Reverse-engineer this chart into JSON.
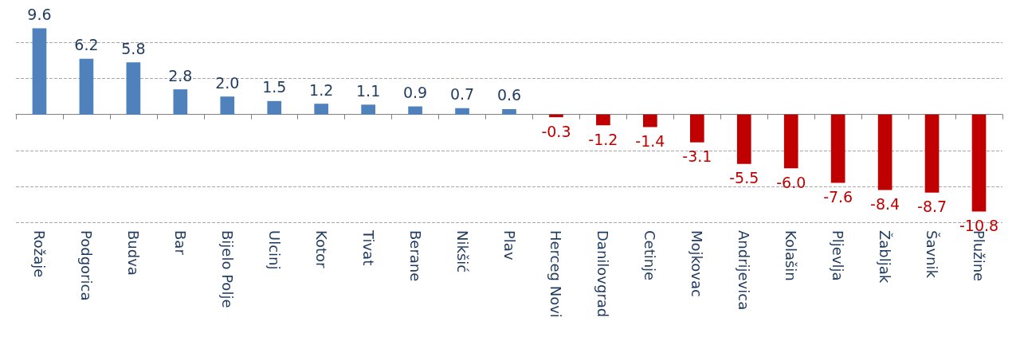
{
  "chart_data": {
    "type": "bar",
    "categories": [
      "Rožaje",
      "Podgorica",
      "Budva",
      "Bar",
      "Bijelo Polje",
      "Ulcinj",
      "Kotor",
      "Tivat",
      "Berane",
      "Nikšić",
      "Plav",
      "Herceg Novi",
      "Danilovgrad",
      "Cetinje",
      "Mojkovac",
      "Andrijevica",
      "Kolašin",
      "Pljevlja",
      "Žabljak",
      "Šavnik",
      "Plužine"
    ],
    "values": [
      9.6,
      6.2,
      5.8,
      2.8,
      2.0,
      1.5,
      1.2,
      1.1,
      0.9,
      0.7,
      0.6,
      -0.3,
      -1.2,
      -1.4,
      -3.1,
      -5.5,
      -6.0,
      -7.6,
      -8.4,
      -8.7,
      -10.8
    ],
    "colors": [
      "#4f81bd",
      "#4f81bd",
      "#4f81bd",
      "#4f81bd",
      "#4f81bd",
      "#4f81bd",
      "#4f81bd",
      "#4f81bd",
      "#4f81bd",
      "#4f81bd",
      "#4f81bd",
      "#c00000",
      "#c00000",
      "#c00000",
      "#c00000",
      "#c00000",
      "#c00000",
      "#c00000",
      "#c00000",
      "#c00000",
      "#c00000"
    ],
    "value_labels": [
      "9.6",
      "6.2",
      "5.8",
      "2.8",
      "2.0",
      "1.5",
      "1.2",
      "1.1",
      "0.9",
      "0.7",
      "0.6",
      "-0.3",
      "-1.2",
      "-1.4",
      "-3.1",
      "-5.5",
      "-6.0",
      "-7.6",
      "-8.4",
      "-8.7",
      "-10.8"
    ],
    "yticks": [
      {
        "value": -12,
        "label": null
      },
      {
        "value": -8,
        "label": null
      },
      {
        "value": -4,
        "label": null
      },
      {
        "value": 0,
        "label": null
      },
      {
        "value": 4,
        "label": null
      },
      {
        "value": 8,
        "label": null
      }
    ],
    "tick_labels": "x",
    "grid": "y"
  }
}
